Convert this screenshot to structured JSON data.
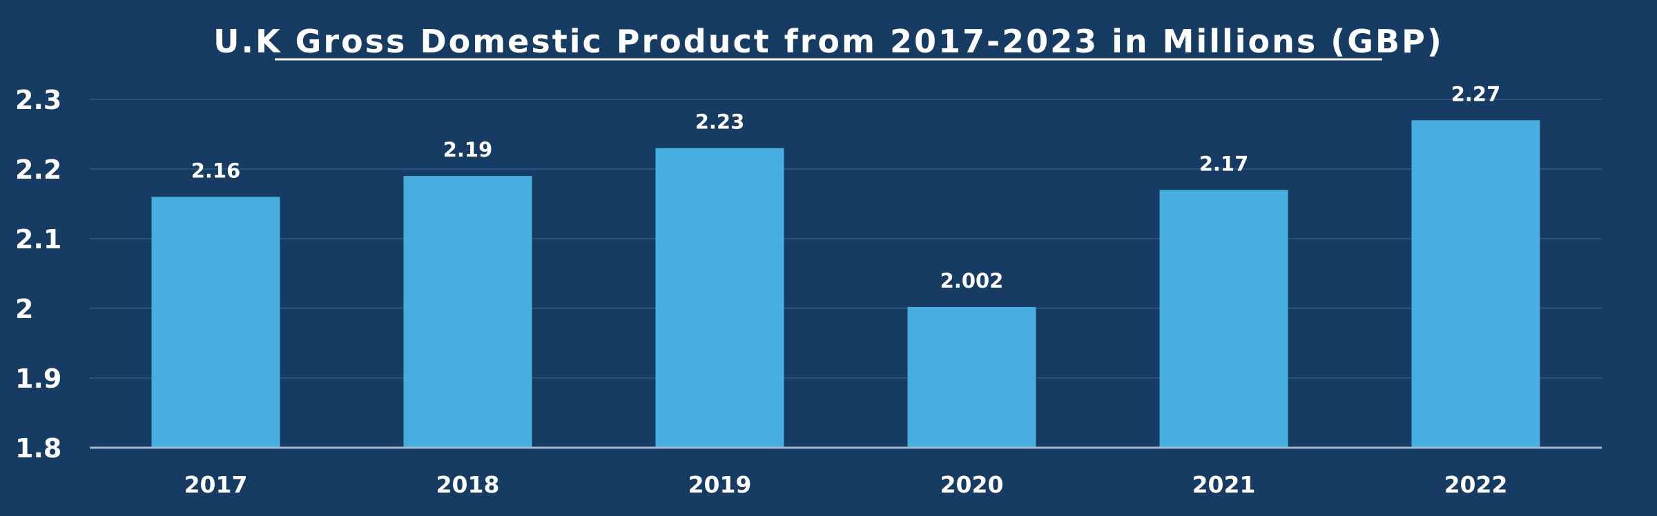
{
  "colors": {
    "background": "#173c63",
    "bar": "#47afe0",
    "text": "#ffffff",
    "grid": "#2f5a82",
    "axis": "#9fb8cf"
  },
  "chart_data": {
    "type": "bar",
    "title": "U.K Gross Domestic Product from 2017-2023 in Millions (GBP)",
    "xlabel": "",
    "ylabel": "",
    "categories": [
      "2017",
      "2018",
      "2019",
      "2020",
      "2021",
      "2022"
    ],
    "values": [
      2.16,
      2.19,
      2.23,
      2.002,
      2.17,
      2.27
    ],
    "data_labels": [
      "2.16",
      "2.19",
      "2.23",
      "2.002",
      "2.17",
      "2.27"
    ],
    "ylim": [
      1.8,
      2.3
    ],
    "yticks": [
      1.8,
      1.9,
      2.0,
      2.1,
      2.2,
      2.3
    ],
    "ytick_labels": [
      "1.8",
      "1.9",
      "2",
      "2.1",
      "2.2",
      "2.3"
    ],
    "grid": true,
    "legend": "none"
  }
}
